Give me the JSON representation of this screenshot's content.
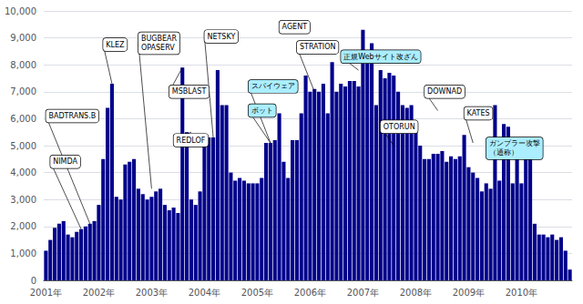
{
  "chart_data": {
    "type": "bar",
    "categories": [
      "2001年",
      null,
      null,
      null,
      null,
      null,
      null,
      null,
      null,
      null,
      null,
      null,
      "2002年",
      null,
      null,
      null,
      null,
      null,
      null,
      null,
      null,
      null,
      null,
      null,
      "2003年",
      null,
      null,
      null,
      null,
      null,
      null,
      null,
      null,
      null,
      null,
      null,
      "2004年",
      null,
      null,
      null,
      null,
      null,
      null,
      null,
      null,
      null,
      null,
      null,
      "2005年",
      null,
      null,
      null,
      null,
      null,
      null,
      null,
      null,
      null,
      null,
      null,
      "2006年",
      null,
      null,
      null,
      null,
      null,
      null,
      null,
      null,
      null,
      null,
      null,
      "2007年",
      null,
      null,
      null,
      null,
      null,
      null,
      null,
      null,
      null,
      null,
      null,
      "2008年",
      null,
      null,
      null,
      null,
      null,
      null,
      null,
      null,
      null,
      null,
      null,
      "2009年",
      null,
      null,
      null,
      null,
      null,
      null,
      null,
      null,
      null,
      null,
      null,
      "2010年",
      null,
      null,
      null,
      null,
      null,
      null,
      null,
      null,
      null,
      null,
      null
    ],
    "values": [
      1100,
      1500,
      1950,
      2100,
      2200,
      1700,
      1600,
      1800,
      1900,
      2000,
      2100,
      2200,
      2800,
      4500,
      6400,
      7300,
      3100,
      3000,
      4300,
      4400,
      4500,
      3400,
      3200,
      3000,
      3100,
      3300,
      3400,
      2800,
      2600,
      2700,
      2500,
      7900,
      5500,
      3000,
      2800,
      3300,
      5400,
      5300,
      5300,
      7800,
      6500,
      6500,
      4000,
      3700,
      3800,
      3700,
      3600,
      3600,
      3600,
      3800,
      5100,
      5100,
      5200,
      6200,
      4400,
      3800,
      5200,
      5200,
      6200,
      7600,
      7000,
      7100,
      7000,
      7300,
      6200,
      8100,
      7000,
      7300,
      7200,
      7400,
      7400,
      7200,
      9300,
      8500,
      8800,
      6500,
      7800,
      7500,
      7700,
      7600,
      7000,
      6500,
      6400,
      6500,
      5900,
      5000,
      4500,
      4500,
      4700,
      4700,
      4800,
      4400,
      4600,
      4500,
      4600,
      5400,
      4200,
      4000,
      3800,
      3300,
      3600,
      3400,
      6500,
      3700,
      5800,
      5700,
      3600,
      5100,
      3600,
      4900,
      5300,
      2100,
      1700,
      1700,
      1600,
      1700,
      1500,
      1600,
      1100,
      400
    ],
    "color": "#00008B",
    "ylim": [
      0,
      10000
    ],
    "yticks": [
      0,
      1000,
      2000,
      3000,
      4000,
      5000,
      6000,
      7000,
      8000,
      9000,
      10000
    ],
    "grid": true,
    "annotations": [
      {
        "text": "NIMDA",
        "x": 8,
        "y": 1900,
        "text_x": 1,
        "text_y": 4400,
        "color": "#ffffff"
      },
      {
        "text": "BADTRANS.B",
        "x": 10,
        "y": 2100,
        "text_x": 0,
        "text_y": 6100,
        "color": "#ffffff"
      },
      {
        "text": "KLEZ",
        "x": 15,
        "y": 7300,
        "text_x": 13,
        "text_y": 8750,
        "color": "#ffffff"
      },
      {
        "text": "BUGBEAR\nOPASERV",
        "x": 24,
        "y": 3400,
        "text_x": 21,
        "text_y": 8800,
        "color": "#ffffff"
      },
      {
        "text": "MSBLAST",
        "x": 31,
        "y": 7900,
        "text_x": 28,
        "text_y": 7000,
        "color": "#ffffff"
      },
      {
        "text": "REDLOF",
        "x": 33,
        "y": 5500,
        "text_x": 29,
        "text_y": 5200,
        "color": "#ffffff"
      },
      {
        "text": "NETSKY",
        "x": 38,
        "y": 5300,
        "text_x": 36,
        "text_y": 9050,
        "color": "#ffffff"
      },
      {
        "text": "AGENT",
        "x": 54,
        "y": 9300,
        "text_x": 53,
        "text_y": 9400,
        "color": "#ffffff"
      },
      {
        "text": "STRATION",
        "x": 61,
        "y": 7000,
        "text_x": 57,
        "text_y": 8650,
        "color": "#ffffff"
      },
      {
        "text": "OTORUN",
        "x": 79,
        "y": 5000,
        "text_x": 76,
        "text_y": 5700,
        "color": "#ffffff"
      },
      {
        "text": "DOWNAD",
        "x": 89,
        "y": 6300,
        "text_x": 86,
        "text_y": 7000,
        "color": "#ffffff"
      },
      {
        "text": "KATES",
        "x": 97,
        "y": 5100,
        "text_x": 95,
        "text_y": 6200,
        "color": "#ffffff"
      },
      {
        "text": "スパイウェア",
        "x": 51,
        "y": 5100,
        "text_x": 46,
        "text_y": 7200,
        "color": "#aaeeff"
      },
      {
        "text": "ボット",
        "x": 51,
        "y": 5100,
        "text_x": 46,
        "text_y": 6300,
        "color": "#aaeeff"
      },
      {
        "text": "正規Webサイト改ざん",
        "x": 71,
        "y": 7800,
        "text_x": 67,
        "text_y": 8300,
        "color": "#aaeeff"
      },
      {
        "text": "ガンブラー攻撃\n（通称）",
        "x": 103,
        "y": 5300,
        "text_x": 100,
        "text_y": 4900,
        "color": "#aaeeff"
      }
    ]
  }
}
